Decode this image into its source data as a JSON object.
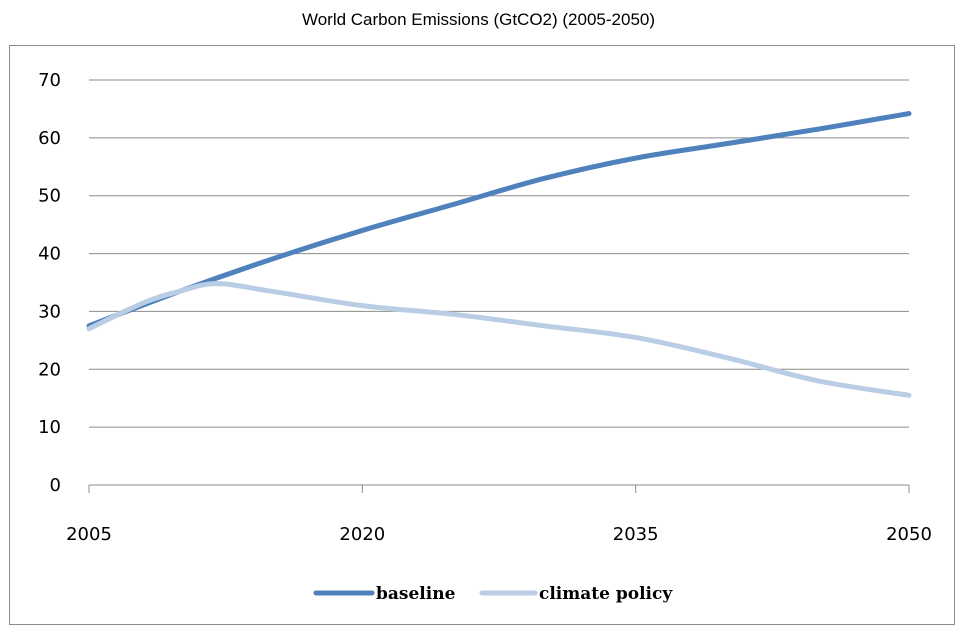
{
  "chart_data": {
    "type": "line",
    "title": "World Carbon Emissions (GtCO2) (2005-2050)",
    "xlabel": "",
    "ylabel": "",
    "xlim": [
      2005,
      2050
    ],
    "ylim": [
      0,
      70
    ],
    "x_ticks": [
      "2005",
      "2020",
      "2035",
      "2050"
    ],
    "y_ticks": [
      "0",
      "10",
      "20",
      "30",
      "40",
      "50",
      "60",
      "70"
    ],
    "grid": "horizontal",
    "legend_position": "bottom",
    "series": [
      {
        "name": "baseline",
        "color": "#4f81bd",
        "x": [
          2005,
          2010,
          2015,
          2020,
          2025,
          2030,
          2035,
          2040,
          2045,
          2050
        ],
        "y": [
          27.5,
          33.5,
          39.0,
          44.0,
          48.5,
          53.0,
          56.5,
          59.0,
          61.5,
          64.2
        ]
      },
      {
        "name": "climate policy",
        "color": "#b9cde5",
        "x": [
          2005,
          2008,
          2010,
          2012,
          2015,
          2020,
          2025,
          2030,
          2035,
          2040,
          2045,
          2050
        ],
        "y": [
          27.0,
          31.5,
          33.5,
          34.8,
          33.5,
          31.0,
          29.5,
          27.5,
          25.5,
          22.0,
          18.0,
          15.5
        ]
      }
    ]
  }
}
